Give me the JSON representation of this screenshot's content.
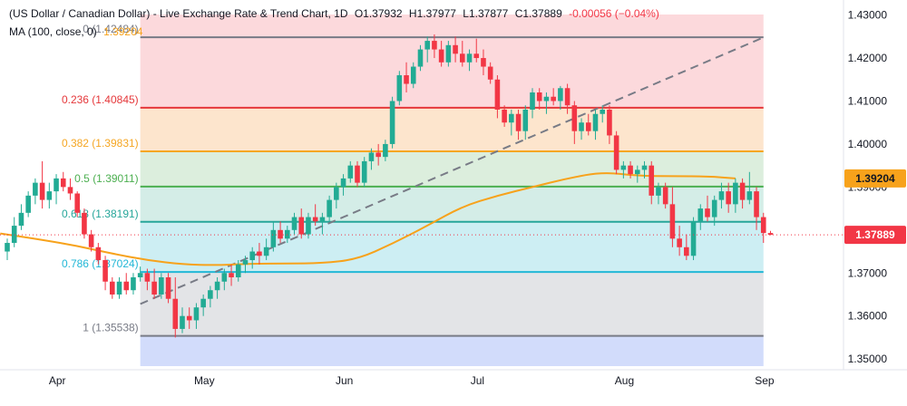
{
  "header": {
    "title": "(US Dollar / Canadian Dollar) - Live Exchange Rate & Trend Chart, 1D",
    "open": "O1.37932",
    "high": "H1.37977",
    "low": "L1.37877",
    "close": "C1.37889",
    "change": "-0.00056 (−0.04%)",
    "ma_label": "MA (100, close, 0)",
    "ma_value": "1.39204"
  },
  "colors": {
    "up": "#22ab94",
    "down": "#f23645",
    "ma": "#f7a21b",
    "trend": "#787b86"
  },
  "chart_data": {
    "type": "candlestick",
    "y_axis": {
      "range": [
        1.3475,
        1.4335
      ],
      "ticks": [
        "1.43000",
        "1.42000",
        "1.41000",
        "1.40000",
        "1.39000",
        "1.38000",
        "1.37000",
        "1.36000",
        "1.35000"
      ]
    },
    "x_axis": {
      "range": [
        0,
        102
      ],
      "tick_labels": [
        {
          "label": "Apr",
          "x": 3
        },
        {
          "label": "May",
          "x": 24
        },
        {
          "label": "Jun",
          "x": 44
        },
        {
          "label": "Jul",
          "x": 63
        },
        {
          "label": "Aug",
          "x": 84
        },
        {
          "label": "Sep",
          "x": 104
        }
      ]
    },
    "fibonacci": {
      "x_start": 19,
      "x_end": 108,
      "levels": [
        {
          "ratio": 0,
          "price": 1.42484,
          "label": "0 (1.42484)",
          "color": "#787b86",
          "fill": "#fcd9dc"
        },
        {
          "ratio": 0.236,
          "price": 1.40845,
          "label": "0.236 (1.40845)",
          "color": "#e5383b",
          "fill": "#fde5cd"
        },
        {
          "ratio": 0.382,
          "price": 1.39831,
          "label": "0.382 (1.39831)",
          "color": "#f5a623",
          "fill": "#dceedd"
        },
        {
          "ratio": 0.5,
          "price": 1.39011,
          "label": "0.5 (1.39011)",
          "color": "#4caf50",
          "fill": "#d4ede7"
        },
        {
          "ratio": 0.618,
          "price": 1.38191,
          "label": "0.618 (1.38191)",
          "color": "#26a69a",
          "fill": "#cdeef3"
        },
        {
          "ratio": 0.786,
          "price": 1.37024,
          "label": "0.786 (1.37024)",
          "color": "#22b7d6",
          "fill": "#e3e4e7"
        },
        {
          "ratio": 1,
          "price": 1.35538,
          "label": "1 (1.35538)",
          "color": "#787b86",
          "fill": "#d2dcfb"
        }
      ]
    },
    "trendline": {
      "x0": 19,
      "y0": 1.3628,
      "x1": 108,
      "y1": 1.4248
    },
    "price_line": {
      "value": 1.37889,
      "label": "1.37889",
      "color": "#f23645"
    },
    "ma_line": {
      "points": [
        [
          -1,
          1.3792
        ],
        [
          5,
          1.3777
        ],
        [
          10,
          1.3763
        ],
        [
          15,
          1.3745
        ],
        [
          20,
          1.373
        ],
        [
          25,
          1.372
        ],
        [
          30,
          1.3718
        ],
        [
          35,
          1.3722
        ],
        [
          40,
          1.3722
        ],
        [
          45,
          1.3723
        ],
        [
          50,
          1.3732
        ],
        [
          55,
          1.3768
        ],
        [
          60,
          1.381
        ],
        [
          65,
          1.3855
        ],
        [
          70,
          1.388
        ],
        [
          75,
          1.39
        ],
        [
          80,
          1.392
        ],
        [
          85,
          1.3935
        ],
        [
          90,
          1.3926
        ],
        [
          95,
          1.3925
        ],
        [
          100,
          1.3925
        ],
        [
          104,
          1.392
        ]
      ],
      "label": "1.39204"
    },
    "candles": [
      {
        "x": 0,
        "o": 1.375,
        "h": 1.378,
        "l": 1.373,
        "c": 1.377
      },
      {
        "x": 1,
        "o": 1.377,
        "h": 1.383,
        "l": 1.376,
        "c": 1.381
      },
      {
        "x": 2,
        "o": 1.381,
        "h": 1.386,
        "l": 1.38,
        "c": 1.384
      },
      {
        "x": 3,
        "o": 1.384,
        "h": 1.389,
        "l": 1.383,
        "c": 1.388
      },
      {
        "x": 4,
        "o": 1.388,
        "h": 1.392,
        "l": 1.386,
        "c": 1.391
      },
      {
        "x": 5,
        "o": 1.391,
        "h": 1.396,
        "l": 1.385,
        "c": 1.387
      },
      {
        "x": 6,
        "o": 1.387,
        "h": 1.391,
        "l": 1.385,
        "c": 1.389
      },
      {
        "x": 7,
        "o": 1.389,
        "h": 1.393,
        "l": 1.386,
        "c": 1.392
      },
      {
        "x": 8,
        "o": 1.392,
        "h": 1.3935,
        "l": 1.389,
        "c": 1.39
      },
      {
        "x": 9,
        "o": 1.39,
        "h": 1.392,
        "l": 1.387,
        "c": 1.3885
      },
      {
        "x": 10,
        "o": 1.3885,
        "h": 1.389,
        "l": 1.383,
        "c": 1.384
      },
      {
        "x": 11,
        "o": 1.384,
        "h": 1.385,
        "l": 1.378,
        "c": 1.379
      },
      {
        "x": 12,
        "o": 1.379,
        "h": 1.38,
        "l": 1.375,
        "c": 1.376
      },
      {
        "x": 13,
        "o": 1.376,
        "h": 1.377,
        "l": 1.372,
        "c": 1.373
      },
      {
        "x": 14,
        "o": 1.373,
        "h": 1.374,
        "l": 1.366,
        "c": 1.368
      },
      {
        "x": 15,
        "o": 1.368,
        "h": 1.369,
        "l": 1.364,
        "c": 1.365
      },
      {
        "x": 16,
        "o": 1.365,
        "h": 1.369,
        "l": 1.364,
        "c": 1.368
      },
      {
        "x": 17,
        "o": 1.368,
        "h": 1.37,
        "l": 1.365,
        "c": 1.366
      },
      {
        "x": 18,
        "o": 1.366,
        "h": 1.37,
        "l": 1.365,
        "c": 1.369
      },
      {
        "x": 19,
        "o": 1.369,
        "h": 1.3715,
        "l": 1.368,
        "c": 1.37
      },
      {
        "x": 20,
        "o": 1.37,
        "h": 1.371,
        "l": 1.366,
        "c": 1.368
      },
      {
        "x": 21,
        "o": 1.368,
        "h": 1.371,
        "l": 1.364,
        "c": 1.365
      },
      {
        "x": 22,
        "o": 1.365,
        "h": 1.37,
        "l": 1.364,
        "c": 1.369
      },
      {
        "x": 23,
        "o": 1.369,
        "h": 1.37,
        "l": 1.363,
        "c": 1.364
      },
      {
        "x": 24,
        "o": 1.364,
        "h": 1.369,
        "l": 1.355,
        "c": 1.357
      },
      {
        "x": 25,
        "o": 1.357,
        "h": 1.362,
        "l": 1.356,
        "c": 1.36
      },
      {
        "x": 26,
        "o": 1.36,
        "h": 1.362,
        "l": 1.357,
        "c": 1.359
      },
      {
        "x": 27,
        "o": 1.359,
        "h": 1.363,
        "l": 1.357,
        "c": 1.362
      },
      {
        "x": 28,
        "o": 1.362,
        "h": 1.365,
        "l": 1.36,
        "c": 1.364
      },
      {
        "x": 29,
        "o": 1.364,
        "h": 1.367,
        "l": 1.362,
        "c": 1.366
      },
      {
        "x": 30,
        "o": 1.366,
        "h": 1.369,
        "l": 1.364,
        "c": 1.368
      },
      {
        "x": 31,
        "o": 1.368,
        "h": 1.371,
        "l": 1.366,
        "c": 1.37
      },
      {
        "x": 32,
        "o": 1.37,
        "h": 1.372,
        "l": 1.367,
        "c": 1.369
      },
      {
        "x": 33,
        "o": 1.369,
        "h": 1.373,
        "l": 1.368,
        "c": 1.372
      },
      {
        "x": 34,
        "o": 1.372,
        "h": 1.374,
        "l": 1.37,
        "c": 1.373
      },
      {
        "x": 35,
        "o": 1.373,
        "h": 1.376,
        "l": 1.371,
        "c": 1.375
      },
      {
        "x": 36,
        "o": 1.375,
        "h": 1.377,
        "l": 1.372,
        "c": 1.374
      },
      {
        "x": 37,
        "o": 1.374,
        "h": 1.378,
        "l": 1.373,
        "c": 1.376
      },
      {
        "x": 38,
        "o": 1.376,
        "h": 1.382,
        "l": 1.375,
        "c": 1.38
      },
      {
        "x": 39,
        "o": 1.38,
        "h": 1.382,
        "l": 1.377,
        "c": 1.378
      },
      {
        "x": 40,
        "o": 1.378,
        "h": 1.381,
        "l": 1.377,
        "c": 1.38
      },
      {
        "x": 41,
        "o": 1.38,
        "h": 1.384,
        "l": 1.379,
        "c": 1.383
      },
      {
        "x": 42,
        "o": 1.383,
        "h": 1.385,
        "l": 1.378,
        "c": 1.379
      },
      {
        "x": 43,
        "o": 1.379,
        "h": 1.384,
        "l": 1.378,
        "c": 1.383
      },
      {
        "x": 44,
        "o": 1.383,
        "h": 1.386,
        "l": 1.381,
        "c": 1.382
      },
      {
        "x": 45,
        "o": 1.382,
        "h": 1.384,
        "l": 1.379,
        "c": 1.383
      },
      {
        "x": 46,
        "o": 1.383,
        "h": 1.388,
        "l": 1.382,
        "c": 1.387
      },
      {
        "x": 47,
        "o": 1.387,
        "h": 1.391,
        "l": 1.385,
        "c": 1.39
      },
      {
        "x": 48,
        "o": 1.39,
        "h": 1.393,
        "l": 1.388,
        "c": 1.392
      },
      {
        "x": 49,
        "o": 1.392,
        "h": 1.396,
        "l": 1.391,
        "c": 1.395
      },
      {
        "x": 50,
        "o": 1.395,
        "h": 1.396,
        "l": 1.39,
        "c": 1.391
      },
      {
        "x": 51,
        "o": 1.391,
        "h": 1.397,
        "l": 1.39,
        "c": 1.396
      },
      {
        "x": 52,
        "o": 1.396,
        "h": 1.399,
        "l": 1.394,
        "c": 1.398
      },
      {
        "x": 53,
        "o": 1.398,
        "h": 1.4,
        "l": 1.395,
        "c": 1.397
      },
      {
        "x": 54,
        "o": 1.397,
        "h": 1.401,
        "l": 1.396,
        "c": 1.4
      },
      {
        "x": 55,
        "o": 1.4,
        "h": 1.411,
        "l": 1.399,
        "c": 1.41
      },
      {
        "x": 56,
        "o": 1.41,
        "h": 1.417,
        "l": 1.409,
        "c": 1.416
      },
      {
        "x": 57,
        "o": 1.416,
        "h": 1.419,
        "l": 1.412,
        "c": 1.414
      },
      {
        "x": 58,
        "o": 1.414,
        "h": 1.419,
        "l": 1.413,
        "c": 1.418
      },
      {
        "x": 59,
        "o": 1.418,
        "h": 1.423,
        "l": 1.417,
        "c": 1.422
      },
      {
        "x": 60,
        "o": 1.422,
        "h": 1.425,
        "l": 1.419,
        "c": 1.424
      },
      {
        "x": 61,
        "o": 1.424,
        "h": 1.4255,
        "l": 1.42,
        "c": 1.422
      },
      {
        "x": 62,
        "o": 1.422,
        "h": 1.424,
        "l": 1.418,
        "c": 1.419
      },
      {
        "x": 63,
        "o": 1.419,
        "h": 1.424,
        "l": 1.418,
        "c": 1.423
      },
      {
        "x": 64,
        "o": 1.423,
        "h": 1.425,
        "l": 1.419,
        "c": 1.421
      },
      {
        "x": 65,
        "o": 1.421,
        "h": 1.424,
        "l": 1.418,
        "c": 1.419
      },
      {
        "x": 66,
        "o": 1.419,
        "h": 1.422,
        "l": 1.417,
        "c": 1.421
      },
      {
        "x": 67,
        "o": 1.421,
        "h": 1.4245,
        "l": 1.419,
        "c": 1.42
      },
      {
        "x": 68,
        "o": 1.42,
        "h": 1.422,
        "l": 1.416,
        "c": 1.418
      },
      {
        "x": 69,
        "o": 1.418,
        "h": 1.419,
        "l": 1.414,
        "c": 1.415
      },
      {
        "x": 70,
        "o": 1.415,
        "h": 1.416,
        "l": 1.406,
        "c": 1.408
      },
      {
        "x": 71,
        "o": 1.408,
        "h": 1.409,
        "l": 1.404,
        "c": 1.405
      },
      {
        "x": 72,
        "o": 1.405,
        "h": 1.408,
        "l": 1.402,
        "c": 1.407
      },
      {
        "x": 73,
        "o": 1.407,
        "h": 1.408,
        "l": 1.401,
        "c": 1.403
      },
      {
        "x": 74,
        "o": 1.403,
        "h": 1.409,
        "l": 1.401,
        "c": 1.408
      },
      {
        "x": 75,
        "o": 1.408,
        "h": 1.413,
        "l": 1.406,
        "c": 1.412
      },
      {
        "x": 76,
        "o": 1.412,
        "h": 1.413,
        "l": 1.408,
        "c": 1.41
      },
      {
        "x": 77,
        "o": 1.41,
        "h": 1.412,
        "l": 1.407,
        "c": 1.411
      },
      {
        "x": 78,
        "o": 1.411,
        "h": 1.413,
        "l": 1.409,
        "c": 1.41
      },
      {
        "x": 79,
        "o": 1.41,
        "h": 1.4135,
        "l": 1.408,
        "c": 1.413
      },
      {
        "x": 80,
        "o": 1.413,
        "h": 1.414,
        "l": 1.407,
        "c": 1.409
      },
      {
        "x": 81,
        "o": 1.409,
        "h": 1.41,
        "l": 1.4,
        "c": 1.403
      },
      {
        "x": 82,
        "o": 1.403,
        "h": 1.406,
        "l": 1.401,
        "c": 1.405
      },
      {
        "x": 83,
        "o": 1.405,
        "h": 1.407,
        "l": 1.402,
        "c": 1.403
      },
      {
        "x": 84,
        "o": 1.403,
        "h": 1.408,
        "l": 1.401,
        "c": 1.407
      },
      {
        "x": 85,
        "o": 1.407,
        "h": 1.409,
        "l": 1.405,
        "c": 1.408
      },
      {
        "x": 86,
        "o": 1.408,
        "h": 1.409,
        "l": 1.4,
        "c": 1.402
      },
      {
        "x": 87,
        "o": 1.402,
        "h": 1.403,
        "l": 1.393,
        "c": 1.394
      },
      {
        "x": 88,
        "o": 1.394,
        "h": 1.396,
        "l": 1.392,
        "c": 1.395
      },
      {
        "x": 89,
        "o": 1.395,
        "h": 1.396,
        "l": 1.392,
        "c": 1.393
      },
      {
        "x": 90,
        "o": 1.393,
        "h": 1.395,
        "l": 1.391,
        "c": 1.394
      },
      {
        "x": 91,
        "o": 1.394,
        "h": 1.396,
        "l": 1.392,
        "c": 1.395
      },
      {
        "x": 92,
        "o": 1.395,
        "h": 1.396,
        "l": 1.386,
        "c": 1.388
      },
      {
        "x": 93,
        "o": 1.388,
        "h": 1.391,
        "l": 1.386,
        "c": 1.39
      },
      {
        "x": 94,
        "o": 1.39,
        "h": 1.391,
        "l": 1.385,
        "c": 1.386
      },
      {
        "x": 95,
        "o": 1.386,
        "h": 1.39,
        "l": 1.376,
        "c": 1.378
      },
      {
        "x": 96,
        "o": 1.378,
        "h": 1.381,
        "l": 1.374,
        "c": 1.376
      },
      {
        "x": 97,
        "o": 1.376,
        "h": 1.379,
        "l": 1.373,
        "c": 1.374
      },
      {
        "x": 98,
        "o": 1.374,
        "h": 1.383,
        "l": 1.373,
        "c": 1.382
      },
      {
        "x": 99,
        "o": 1.382,
        "h": 1.386,
        "l": 1.38,
        "c": 1.385
      },
      {
        "x": 100,
        "o": 1.385,
        "h": 1.388,
        "l": 1.382,
        "c": 1.383
      },
      {
        "x": 101,
        "o": 1.383,
        "h": 1.388,
        "l": 1.381,
        "c": 1.387
      },
      {
        "x": 102,
        "o": 1.387,
        "h": 1.391,
        "l": 1.385,
        "c": 1.389
      },
      {
        "x": 103,
        "o": 1.389,
        "h": 1.391,
        "l": 1.384,
        "c": 1.386
      },
      {
        "x": 104,
        "o": 1.386,
        "h": 1.392,
        "l": 1.384,
        "c": 1.391
      },
      {
        "x": 105,
        "o": 1.391,
        "h": 1.392,
        "l": 1.385,
        "c": 1.387
      },
      {
        "x": 106,
        "o": 1.387,
        "h": 1.3935,
        "l": 1.386,
        "c": 1.389
      },
      {
        "x": 107,
        "o": 1.389,
        "h": 1.39,
        "l": 1.38,
        "c": 1.383
      },
      {
        "x": 108,
        "o": 1.383,
        "h": 1.384,
        "l": 1.377,
        "c": 1.3793
      },
      {
        "x": 109,
        "o": 1.3793,
        "h": 1.3798,
        "l": 1.3788,
        "c": 1.3789
      }
    ]
  }
}
